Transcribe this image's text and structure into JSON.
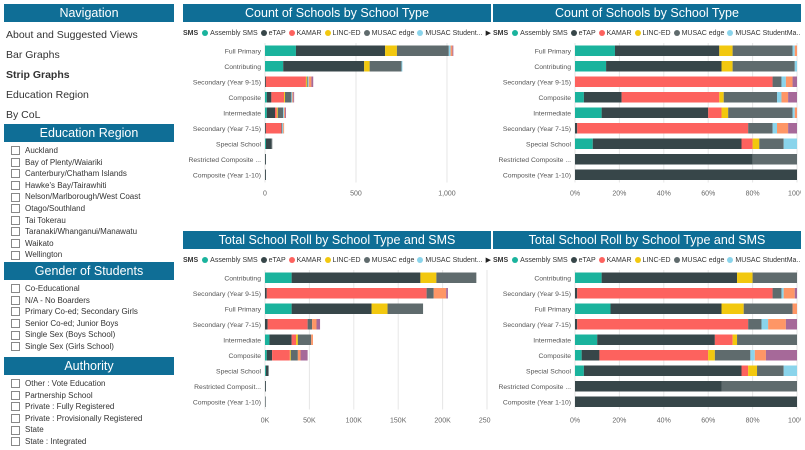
{
  "navigation": {
    "header": "Navigation",
    "items": [
      {
        "label": "About and Suggested Views",
        "active": false
      },
      {
        "label": "Bar Graphs",
        "active": false
      },
      {
        "label": "Strip Graphs",
        "active": true
      },
      {
        "label": "Education Region",
        "active": false
      },
      {
        "label": "By CoL",
        "active": false
      }
    ]
  },
  "filters": [
    {
      "header": "Education Region",
      "options": [
        "Auckland",
        "Bay of Plenty/Waiariki",
        "Canterbury/Chatham Islands",
        "Hawke's Bay/Tairawhiti",
        "Nelson/Marlborough/West Coast",
        "Otago/Southland",
        "Tai Tokerau",
        "Taranaki/Whanganui/Manawatu",
        "Waikato",
        "Wellington"
      ]
    },
    {
      "header": "Gender of Students",
      "options": [
        "Co-Educational",
        "N/A - No Boarders",
        "Primary Co-ed; Secondary Girls",
        "Senior Co-ed; Junior Boys",
        "Single Sex (Boys School)",
        "Single Sex (Girls School)"
      ]
    },
    {
      "header": "Authority",
      "options": [
        "Other : Vote Education",
        "Partnership School",
        "Private : Fully Registered",
        "Private : Provisionally Registered",
        "State",
        "State : Integrated"
      ]
    }
  ],
  "colors": {
    "Assembly SMS": "#1ab39d",
    "eTAP": "#374649",
    "KAMAR": "#fd625e",
    "LINC-ED": "#f2c80f",
    "MUSAC edge": "#5f6b6d",
    "MUSAC Student": "#8ad4eb",
    "Other": "#fe9666",
    "Purple": "#a66999",
    "Header": "#0f6e96"
  },
  "charts": [
    {
      "title": "Count of Schools by School Type",
      "legend_title": "SMS",
      "legend": [
        "Assembly SMS",
        "eTAP",
        "KAMAR",
        "LINC-ED",
        "MUSAC edge",
        "MUSAC Student..."
      ],
      "more_icon": "▶",
      "chart_data": {
        "type": "bar",
        "stacked": true,
        "orientation": "horizontal",
        "categories": [
          "Full Primary",
          "Contributing",
          "Secondary (Year 9-15)",
          "Composite",
          "Intermediate",
          "Secondary (Year 7-15)",
          "Special School",
          "Restricted Composite ...",
          "Composite (Year 1-10)"
        ],
        "series": [
          {
            "name": "Assembly SMS",
            "values": [
              170,
              100,
              0,
              10,
              10,
              0,
              5,
              0,
              0
            ]
          },
          {
            "name": "eTAP",
            "values": [
              490,
              445,
              5,
              25,
              45,
              5,
              30,
              5,
              5
            ]
          },
          {
            "name": "KAMAR",
            "values": [
              0,
              0,
              220,
              70,
              10,
              85,
              0,
              0,
              0
            ]
          },
          {
            "name": "LINC-ED",
            "values": [
              65,
              30,
              5,
              5,
              5,
              0,
              0,
              0,
              0
            ]
          },
          {
            "name": "MUSAC edge",
            "values": [
              285,
              175,
              5,
              35,
              30,
              5,
              5,
              0,
              0
            ]
          },
          {
            "name": "MUSAC Student...",
            "values": [
              10,
              5,
              5,
              5,
              5,
              5,
              0,
              0,
              0
            ]
          },
          {
            "name": "Other",
            "values": [
              10,
              0,
              15,
              5,
              5,
              5,
              0,
              0,
              0
            ]
          },
          {
            "name": "Purple",
            "values": [
              5,
              0,
              10,
              5,
              5,
              0,
              0,
              0,
              0
            ]
          }
        ],
        "xticks": [
          "0",
          "500",
          "1,000"
        ],
        "xlim": [
          0,
          1220
        ]
      }
    },
    {
      "title": "Count of Schools by School Type",
      "legend_title": "SMS",
      "legend": [
        "Assembly SMS",
        "eTAP",
        "KAMAR",
        "LINC-ED",
        "MUSAC edge",
        "MUSAC StudentMa..."
      ],
      "more_icon": "▶",
      "chart_data": {
        "type": "bar",
        "stacked": true,
        "orientation": "horizontal",
        "percent": true,
        "categories": [
          "Full Primary",
          "Contributing",
          "Secondary (Year 9-15)",
          "Composite",
          "Intermediate",
          "Secondary (Year 7-15)",
          "Special School",
          "Restricted Composite ...",
          "Composite (Year 1-10)"
        ],
        "series": [
          {
            "name": "Assembly SMS",
            "values": [
              18,
              14,
              0,
              4,
              12,
              0,
              8,
              0,
              0
            ]
          },
          {
            "name": "eTAP",
            "values": [
              47,
              52,
              0,
              17,
              48,
              1,
              67,
              80,
              100
            ]
          },
          {
            "name": "KAMAR",
            "values": [
              0,
              0,
              89,
              44,
              6,
              77,
              5,
              0,
              0
            ]
          },
          {
            "name": "LINC-ED",
            "values": [
              6,
              5,
              0,
              2,
              3,
              0,
              3,
              0,
              0
            ]
          },
          {
            "name": "MUSAC edge",
            "values": [
              27,
              28,
              4,
              24,
              29,
              11,
              11,
              20,
              0
            ]
          },
          {
            "name": "MUSAC StudentMa...",
            "values": [
              1,
              1,
              2,
              2,
              1,
              2,
              6,
              0,
              0
            ]
          },
          {
            "name": "Other",
            "values": [
              1,
              0,
              3,
              3,
              1,
              5,
              0,
              0,
              0
            ]
          },
          {
            "name": "Purple",
            "values": [
              0,
              0,
              2,
              4,
              0,
              4,
              0,
              0,
              0
            ]
          }
        ],
        "xticks": [
          "0%",
          "20%",
          "40%",
          "60%",
          "80%",
          "100%"
        ],
        "xlim": [
          0,
          100
        ]
      }
    },
    {
      "title": "Total School Roll by School Type and SMS",
      "legend_title": "SMS",
      "legend": [
        "Assembly SMS",
        "eTAP",
        "KAMAR",
        "LINC-ED",
        "MUSAC edge",
        "MUSAC Student..."
      ],
      "more_icon": "▶",
      "chart_data": {
        "type": "bar",
        "stacked": true,
        "orientation": "horizontal",
        "categories": [
          "Contributing",
          "Secondary (Year 9-15)",
          "Full Primary",
          "Secondary (Year 7-15)",
          "Intermediate",
          "Composite",
          "Special School",
          "Restricted Composit...",
          "Composite (Year 1-10)"
        ],
        "series": [
          {
            "name": "Assembly SMS",
            "values": [
              30000,
              0,
              30000,
              0,
              5000,
              2000,
              1000,
              0,
              0
            ]
          },
          {
            "name": "eTAP",
            "values": [
              145000,
              2000,
              90000,
              3000,
              25000,
              6000,
              3000,
              1000,
              500
            ]
          },
          {
            "name": "KAMAR",
            "values": [
              0,
              180000,
              0,
              45000,
              5000,
              20000,
              0,
              0,
              0
            ]
          },
          {
            "name": "LINC-ED",
            "values": [
              18000,
              0,
              18000,
              0,
              2000,
              1000,
              0,
              0,
              0
            ]
          },
          {
            "name": "MUSAC edge",
            "values": [
              45000,
              8000,
              40000,
              5000,
              15000,
              8000,
              0,
              0,
              0
            ]
          },
          {
            "name": "MUSAC Student...",
            "values": [
              0,
              0,
              0,
              0,
              0,
              0,
              0,
              0,
              0
            ]
          },
          {
            "name": "Other",
            "values": [
              0,
              14000,
              0,
              5000,
              2000,
              3000,
              0,
              0,
              0
            ]
          },
          {
            "name": "Purple",
            "values": [
              0,
              2000,
              0,
              4000,
              0,
              8000,
              0,
              0,
              0
            ]
          }
        ],
        "xticks": [
          "0K",
          "50K",
          "100K",
          "150K",
          "200K",
          "250K"
        ],
        "xlim": [
          0,
          250000
        ]
      }
    },
    {
      "title": "Total School Roll by School Type and SMS",
      "legend_title": "SMS",
      "legend": [
        "Assembly SMS",
        "eTAP",
        "KAMAR",
        "LINC-ED",
        "MUSAC edge",
        "MUSAC StudentMa..."
      ],
      "more_icon": "▶",
      "chart_data": {
        "type": "bar",
        "stacked": true,
        "orientation": "horizontal",
        "percent": true,
        "categories": [
          "Contributing",
          "Secondary (Year 9-15)",
          "Full Primary",
          "Secondary (Year 7-15)",
          "Intermediate",
          "Composite",
          "Special School",
          "Restricted Composite ...",
          "Composite (Year 1-10)"
        ],
        "series": [
          {
            "name": "Assembly SMS",
            "values": [
              12,
              0,
              16,
              0,
              10,
              3,
              4,
              0,
              0
            ]
          },
          {
            "name": "eTAP",
            "values": [
              61,
              1,
              50,
              1,
              53,
              8,
              71,
              66,
              100
            ]
          },
          {
            "name": "KAMAR",
            "values": [
              0,
              88,
              0,
              77,
              8,
              49,
              3,
              0,
              0
            ]
          },
          {
            "name": "LINC-ED",
            "values": [
              7,
              0,
              10,
              0,
              2,
              3,
              4,
              0,
              0
            ]
          },
          {
            "name": "MUSAC edge",
            "values": [
              20,
              4,
              22,
              6,
              27,
              16,
              12,
              34,
              0
            ]
          },
          {
            "name": "MUSAC StudentMa...",
            "values": [
              0,
              1,
              0,
              3,
              0,
              2,
              6,
              0,
              0
            ]
          },
          {
            "name": "Other",
            "values": [
              0,
              5,
              2,
              8,
              0,
              5,
              0,
              0,
              0
            ]
          },
          {
            "name": "Purple",
            "values": [
              0,
              1,
              0,
              5,
              0,
              14,
              0,
              0,
              0
            ]
          }
        ],
        "xticks": [
          "0%",
          "20%",
          "40%",
          "60%",
          "80%",
          "100%"
        ],
        "xlim": [
          0,
          100
        ]
      }
    }
  ]
}
